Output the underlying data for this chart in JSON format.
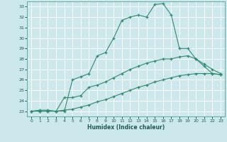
{
  "title": "",
  "xlabel": "Humidex (Indice chaleur)",
  "ylabel": "",
  "bg_color": "#cde8ec",
  "grid_color": "#ffffff",
  "line_color": "#2e8b6e",
  "xlim": [
    -0.5,
    23.5
  ],
  "ylim": [
    22.5,
    33.5
  ],
  "xticks": [
    0,
    1,
    2,
    3,
    4,
    5,
    6,
    7,
    8,
    9,
    10,
    11,
    12,
    13,
    14,
    15,
    16,
    17,
    18,
    19,
    20,
    21,
    22,
    23
  ],
  "yticks": [
    23,
    24,
    25,
    26,
    27,
    28,
    29,
    30,
    31,
    32,
    33
  ],
  "line1": {
    "x": [
      0,
      1,
      2,
      3,
      4,
      5,
      6,
      7,
      8,
      9,
      10,
      11,
      12,
      13,
      14,
      15,
      16,
      17,
      18,
      19,
      20,
      21,
      22,
      23
    ],
    "y": [
      23.0,
      23.1,
      23.1,
      23.0,
      23.0,
      26.0,
      26.3,
      26.6,
      28.3,
      28.6,
      30.0,
      31.7,
      32.0,
      32.2,
      32.0,
      33.2,
      33.3,
      32.2,
      29.0,
      29.0,
      28.0,
      27.3,
      26.6,
      26.5
    ]
  },
  "line2": {
    "x": [
      0,
      1,
      2,
      3,
      4,
      5,
      6,
      7,
      8,
      9,
      10,
      11,
      12,
      13,
      14,
      15,
      16,
      17,
      18,
      19,
      20,
      21,
      22,
      23
    ],
    "y": [
      23.0,
      23.0,
      23.0,
      23.0,
      24.3,
      24.3,
      24.5,
      25.3,
      25.5,
      25.8,
      26.2,
      26.6,
      27.0,
      27.3,
      27.6,
      27.8,
      28.0,
      28.0,
      28.2,
      28.3,
      28.0,
      27.5,
      27.0,
      26.6
    ]
  },
  "line3": {
    "x": [
      0,
      1,
      2,
      3,
      4,
      5,
      6,
      7,
      8,
      9,
      10,
      11,
      12,
      13,
      14,
      15,
      16,
      17,
      18,
      19,
      20,
      21,
      22,
      23
    ],
    "y": [
      23.0,
      23.0,
      23.0,
      23.0,
      23.1,
      23.2,
      23.4,
      23.6,
      23.9,
      24.1,
      24.4,
      24.7,
      25.0,
      25.3,
      25.5,
      25.8,
      26.0,
      26.2,
      26.4,
      26.5,
      26.6,
      26.6,
      26.6,
      26.5
    ]
  }
}
